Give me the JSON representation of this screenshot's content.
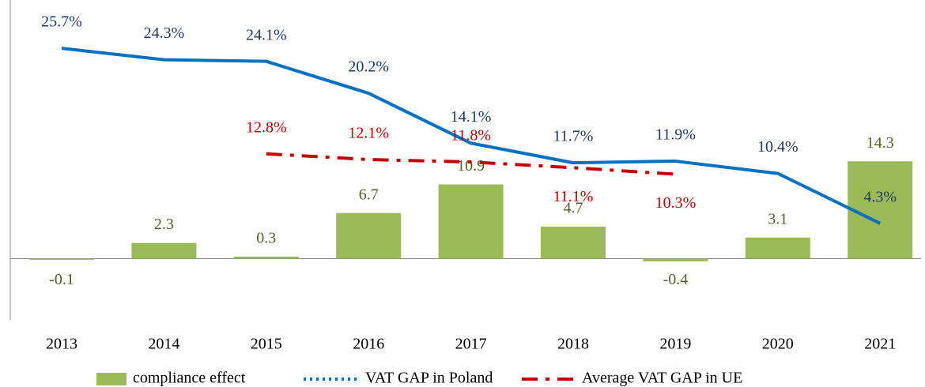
{
  "chart_data": {
    "type": "bar-line",
    "categories": [
      "2013",
      "2014",
      "2015",
      "2016",
      "2017",
      "2018",
      "2019",
      "2020",
      "2021"
    ],
    "ylim": [
      -9,
      38
    ],
    "y2lim": [
      -7.5,
      31.6
    ],
    "series": [
      {
        "name": "compliance effect",
        "type": "bar",
        "color": "#9bbb59",
        "label_color": "#4f6228",
        "values": [
          -0.1,
          2.3,
          0.3,
          6.7,
          10.9,
          4.7,
          -0.4,
          3.1,
          14.3
        ]
      },
      {
        "name": "VAT GAP in Poland",
        "type": "line",
        "axis": "y2",
        "color": "#0070c0",
        "label_color": "#1f3864",
        "values": [
          25.7,
          24.3,
          24.1,
          20.2,
          14.1,
          11.7,
          11.9,
          10.4,
          4.3
        ],
        "value_labels": [
          "25.7%",
          "24.3%",
          "24.1%",
          "20.2%",
          "14.1%",
          "11.7%",
          "11.9%",
          "10.4%",
          "4.3%"
        ]
      },
      {
        "name": "Average VAT GAP in UE",
        "type": "line",
        "axis": "y2",
        "color": "#c00000",
        "label_color": "#c00000",
        "dash": true,
        "values": [
          null,
          null,
          12.8,
          12.1,
          11.8,
          11.1,
          10.3,
          null,
          null
        ],
        "value_labels": [
          null,
          null,
          "12.8%",
          "12.1%",
          "11.8%",
          "11.1%",
          "10.3%",
          null,
          null
        ]
      }
    ]
  }
}
